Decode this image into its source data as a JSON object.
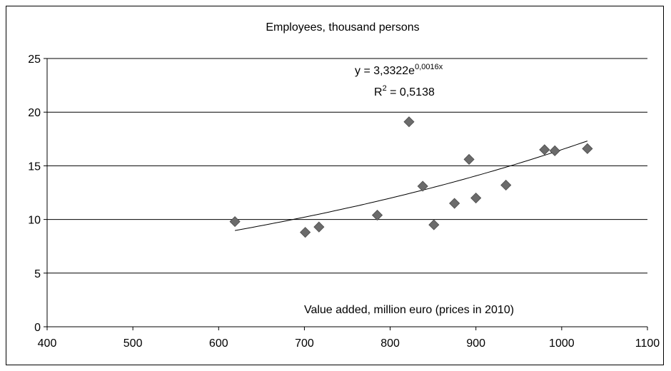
{
  "chart_data": {
    "type": "scatter",
    "title": "Employees, thousand persons",
    "xlabel": "Value added, million euro (prices in 2010)",
    "ylabel": "",
    "xlim": [
      400,
      1100
    ],
    "ylim": [
      0,
      25
    ],
    "x_ticks": [
      "400",
      "500",
      "600",
      "700",
      "800",
      "900",
      "1000",
      "1100"
    ],
    "y_ticks": [
      "0",
      "5",
      "10",
      "15",
      "20",
      "25"
    ],
    "grid": "horizontal",
    "points": [
      {
        "x": 619,
        "y": 9.8
      },
      {
        "x": 701,
        "y": 8.8
      },
      {
        "x": 717,
        "y": 9.3
      },
      {
        "x": 785,
        "y": 10.4
      },
      {
        "x": 822,
        "y": 19.1
      },
      {
        "x": 838,
        "y": 13.1
      },
      {
        "x": 851,
        "y": 9.5
      },
      {
        "x": 875,
        "y": 11.5
      },
      {
        "x": 892,
        "y": 15.6
      },
      {
        "x": 900,
        "y": 12.0
      },
      {
        "x": 935,
        "y": 13.2
      },
      {
        "x": 980,
        "y": 16.5
      },
      {
        "x": 992,
        "y": 16.4
      },
      {
        "x": 1030,
        "y": 16.6
      }
    ],
    "trendline": {
      "type": "exponential",
      "a": 3.3322,
      "b": 0.0016,
      "x_range": [
        619,
        1030
      ],
      "equation_base": "y = 3,3322e",
      "equation_exponent": "0,0016x",
      "r2_base": "R",
      "r2_sup": "2",
      "r2_value": " = 0,5138"
    },
    "colors": {
      "marker": "#6b6b6b",
      "grid": "#000000",
      "trendline": "#000000"
    }
  }
}
